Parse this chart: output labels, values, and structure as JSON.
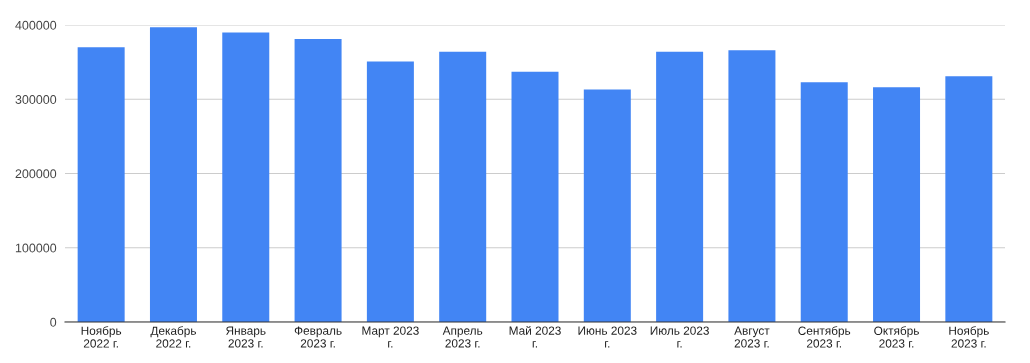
{
  "chart_data": {
    "type": "bar",
    "categories": [
      "Ноябрь 2022 г.",
      "Декабрь 2022 г.",
      "Январь 2023 г.",
      "Февраль 2023 г.",
      "Март 2023 г.",
      "Апрель 2023 г.",
      "Май 2023 г.",
      "Июнь 2023 г.",
      "Июль 2023 г.",
      "Август 2023 г.",
      "Сентябрь 2023 г.",
      "Октябрь 2023 г.",
      "Ноябрь 2023 г."
    ],
    "values": [
      370000,
      397000,
      390000,
      381000,
      351000,
      364000,
      337000,
      313000,
      364000,
      366000,
      323000,
      316000,
      331000
    ],
    "color": "#4285f4",
    "ylim": [
      0,
      400000
    ],
    "yticks": [
      0,
      100000,
      200000,
      300000,
      400000
    ],
    "grid": "y"
  }
}
